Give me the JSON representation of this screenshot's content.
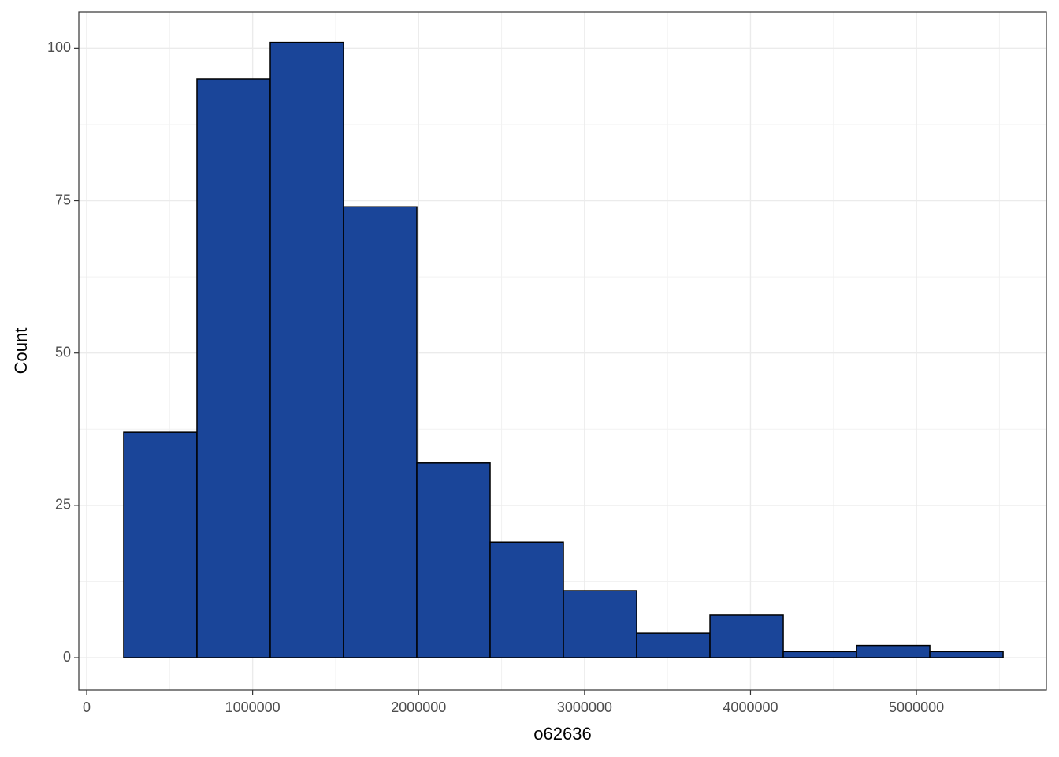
{
  "chart_data": {
    "type": "histogram",
    "x_label": "o62636",
    "y_label": "Count",
    "bins": [
      223000,
      664600,
      1106200,
      1547800,
      1989400,
      2431000,
      2872600,
      3314200,
      3755800,
      4197400,
      4639000,
      5080600,
      5522200
    ],
    "values": [
      37,
      95,
      101,
      74,
      32,
      19,
      11,
      4,
      7,
      1,
      2,
      1
    ],
    "color": "#1a4599",
    "edge_color": "#000000",
    "xlim": [
      -47500,
      5783000
    ],
    "xticks": [
      0,
      1000000,
      2000000,
      3000000,
      4000000,
      5000000
    ],
    "ylim": [
      -5.3,
      106
    ],
    "yticks": [
      0,
      25,
      50,
      75,
      100
    ],
    "grid": true
  }
}
